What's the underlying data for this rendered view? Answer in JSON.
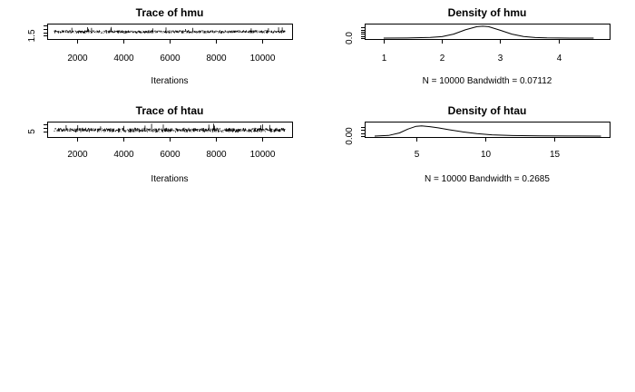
{
  "chart_data": [
    {
      "type": "line",
      "id": "trace_hmu",
      "title": "Trace of hmu",
      "xlabel": "Iterations",
      "ylabel": "",
      "xlim": [
        1001,
        11000
      ],
      "ylim": [
        0.8,
        4.6
      ],
      "xticks": [
        2000,
        4000,
        6000,
        8000,
        10000
      ],
      "xtick_labels": [
        "2000",
        "4000",
        "6000",
        "8000",
        "10000"
      ],
      "yticks": [
        1.5,
        2.5,
        3.5,
        4.5
      ],
      "ytick_labels": [
        "1.5"
      ],
      "series": [
        {
          "center": 2.7,
          "spread": 0.55,
          "n": 10000,
          "x_start": 1001,
          "x_end": 11000
        }
      ]
    },
    {
      "type": "line",
      "id": "density_hmu",
      "title": "Density of hmu",
      "xlabel": "N = 10000   Bandwidth = 0.07112",
      "ylabel": "",
      "xlim": [
        0.8,
        4.75
      ],
      "ylim": [
        0,
        1.2
      ],
      "xticks": [
        1,
        2,
        3,
        4
      ],
      "xtick_labels": [
        "1",
        "2",
        "3",
        "4"
      ],
      "yticks": [
        0,
        0.2,
        0.4,
        0.6,
        0.8,
        1.0
      ],
      "ytick_labels": [
        "0.0"
      ],
      "series": [
        {
          "x": [
            1.0,
            1.4,
            1.8,
            2.0,
            2.2,
            2.4,
            2.6,
            2.7,
            2.8,
            3.0,
            3.2,
            3.4,
            3.6,
            3.8,
            4.0,
            4.2,
            4.6
          ],
          "y": [
            0.0,
            0.01,
            0.06,
            0.14,
            0.38,
            0.78,
            1.08,
            1.12,
            1.08,
            0.74,
            0.38,
            0.15,
            0.05,
            0.015,
            0.005,
            0.0,
            0.0
          ]
        }
      ]
    },
    {
      "type": "line",
      "id": "trace_htau",
      "title": "Trace of htau",
      "xlabel": "Iterations",
      "ylabel": "",
      "xlim": [
        1001,
        11000
      ],
      "ylim": [
        2.5,
        9.5
      ],
      "xticks": [
        2000,
        4000,
        6000,
        8000,
        10000
      ],
      "xtick_labels": [
        "2000",
        "4000",
        "6000",
        "8000",
        "10000"
      ],
      "yticks": [
        5,
        7,
        9
      ],
      "ytick_labels": [
        "5"
      ],
      "series": [
        {
          "center": 5.8,
          "spread": 1.4,
          "n": 10000,
          "x_start": 1001,
          "x_end": 11000
        }
      ]
    },
    {
      "type": "line",
      "id": "density_htau",
      "title": "Density of htau",
      "xlabel": "N = 10000   Bandwidth = 0.2685",
      "ylabel": "",
      "xlim": [
        1.8,
        18.5
      ],
      "ylim": [
        0,
        0.2
      ],
      "xticks": [
        5,
        10,
        15
      ],
      "xtick_labels": [
        "5",
        "10",
        "15"
      ],
      "yticks": [
        0,
        0.05,
        0.1,
        0.15
      ],
      "ytick_labels": [
        "0.00"
      ],
      "series": [
        {
          "x": [
            2.0,
            3.0,
            3.8,
            4.4,
            5.0,
            5.4,
            6.0,
            6.6,
            7.4,
            8.4,
            9.4,
            10.5,
            12.0,
            14.0,
            16.0,
            18.4
          ],
          "y": [
            0.0,
            0.01,
            0.05,
            0.11,
            0.155,
            0.16,
            0.148,
            0.13,
            0.1,
            0.065,
            0.038,
            0.02,
            0.008,
            0.003,
            0.001,
            0.0
          ]
        }
      ]
    }
  ]
}
